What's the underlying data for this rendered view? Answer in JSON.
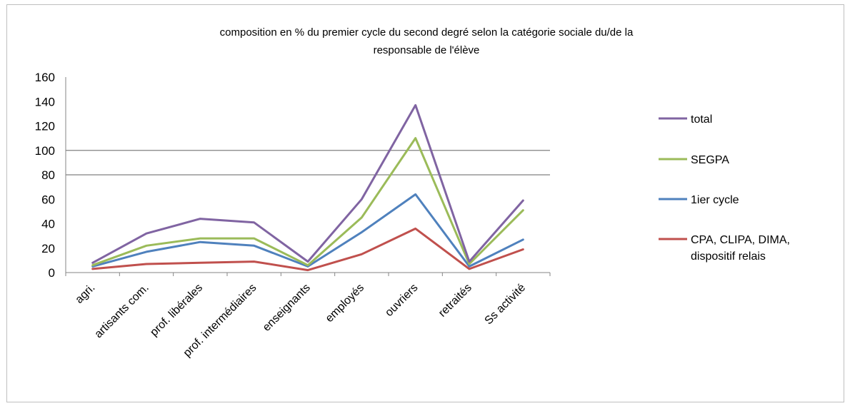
{
  "chart_data": {
    "type": "line",
    "title": "composition en % du premier cycle du second degré selon la catégorie sociale du/de la responsable de l'élève",
    "title_lines": [
      "composition en % du premier cycle du second degré selon la catégorie sociale du/de la",
      "responsable de l'élève"
    ],
    "categories": [
      "agri.",
      "artisants com.",
      "prof. libérales",
      "prof. intermédiaires",
      "enseignants",
      "employés",
      "ouvriers",
      "retraités",
      "Ss activité"
    ],
    "ylim": [
      0,
      160
    ],
    "yticks": [
      "160",
      "140",
      "120",
      "100",
      "80",
      "60",
      "40",
      "20",
      "0"
    ],
    "gridlines": [
      80,
      100
    ],
    "legend_position": "right",
    "series": [
      {
        "name": "total",
        "color": "#8064a2",
        "values": [
          8,
          32,
          44,
          41,
          9,
          60,
          137,
          9,
          59
        ]
      },
      {
        "name": "SEGPA",
        "color": "#9bbb59",
        "values": [
          6,
          22,
          28,
          28,
          6,
          45,
          110,
          7,
          51
        ]
      },
      {
        "name": "1ier cycle",
        "color": "#4f81bd",
        "values": [
          5,
          17,
          25,
          22,
          5,
          33,
          64,
          5,
          27
        ]
      },
      {
        "name": "CPA, CLIPA, DIMA, dispositif relais",
        "color": "#c0504d",
        "values": [
          3,
          7,
          8,
          9,
          2,
          15,
          36,
          3,
          19
        ],
        "label_lines": [
          "CPA, CLIPA, DIMA,",
          "dispositif relais"
        ]
      }
    ]
  }
}
